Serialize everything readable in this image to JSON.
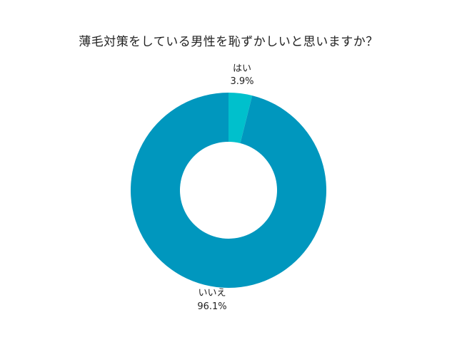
{
  "chart_data": {
    "type": "pie",
    "title": "薄毛対策をしている男性を恥ずかしいと思いますか？",
    "donut": true,
    "legend": "none",
    "slices": [
      {
        "label": "はい",
        "value": 3.9,
        "value_label": "3.9%",
        "color": "#00c0cc"
      },
      {
        "label": "いいえ",
        "value": 96.1,
        "value_label": "96.1%",
        "color": "#0097be"
      }
    ]
  }
}
